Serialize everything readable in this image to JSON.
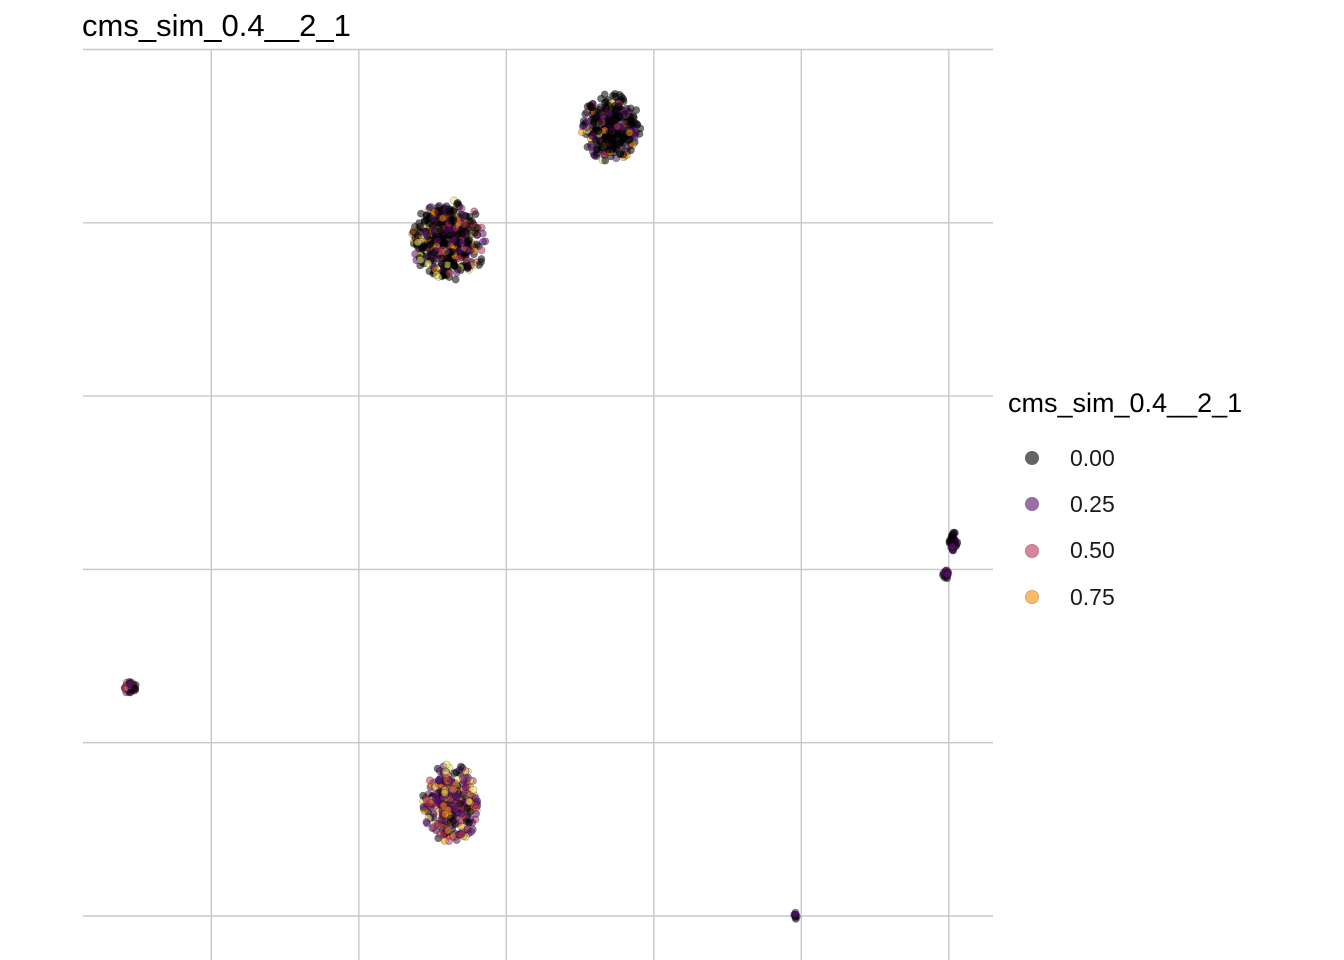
{
  "chart_data": {
    "type": "scatter",
    "title": "cms_sim_0.4__2_1",
    "xlabel": "",
    "ylabel": "",
    "xlim": [
      0,
      6.2
    ],
    "ylim": [
      0,
      5.2
    ],
    "x_gridlines": [
      0.87,
      1.87,
      2.87,
      3.87,
      4.87,
      5.87
    ],
    "y_gridlines": [
      0.0,
      1.0,
      2.0,
      3.0,
      4.0,
      5.0
    ],
    "grid": true,
    "legend_position": "right",
    "legend": {
      "title": "cms_sim_0.4__2_1",
      "entries": [
        {
          "label": "0.00",
          "color": "#000004"
        },
        {
          "label": "0.25",
          "color": "#57106e"
        },
        {
          "label": "0.50",
          "color": "#bc3754"
        },
        {
          "label": "0.75",
          "color": "#f98e09"
        }
      ]
    },
    "clusters": [
      {
        "center": [
          3.58,
          4.55
        ],
        "spread": [
          0.2,
          0.2
        ],
        "n": 340,
        "mix": [
          0.72,
          0.14,
          0.05,
          0.09
        ]
      },
      {
        "center": [
          2.48,
          3.9
        ],
        "spread": [
          0.26,
          0.24
        ],
        "n": 480,
        "mix": [
          0.55,
          0.2,
          0.13,
          0.12
        ]
      },
      {
        "center": [
          2.5,
          0.65
        ],
        "spread": [
          0.2,
          0.23
        ],
        "n": 340,
        "mix": [
          0.15,
          0.38,
          0.25,
          0.22
        ]
      },
      {
        "center": [
          0.32,
          1.32
        ],
        "spread": [
          0.045,
          0.04
        ],
        "n": 45,
        "mix": [
          0.3,
          0.3,
          0.3,
          0.1
        ]
      },
      {
        "center": [
          5.9,
          2.16
        ],
        "spread": [
          0.03,
          0.06
        ],
        "n": 40,
        "mix": [
          0.65,
          0.35,
          0.0,
          0.0
        ]
      },
      {
        "center": [
          5.85,
          1.97
        ],
        "spread": [
          0.02,
          0.03
        ],
        "n": 16,
        "mix": [
          0.4,
          0.6,
          0.0,
          0.0
        ]
      },
      {
        "center": [
          4.83,
          0.0
        ],
        "spread": [
          0.01,
          0.02
        ],
        "n": 10,
        "mix": [
          0.3,
          0.7,
          0.0,
          0.0
        ]
      }
    ]
  }
}
